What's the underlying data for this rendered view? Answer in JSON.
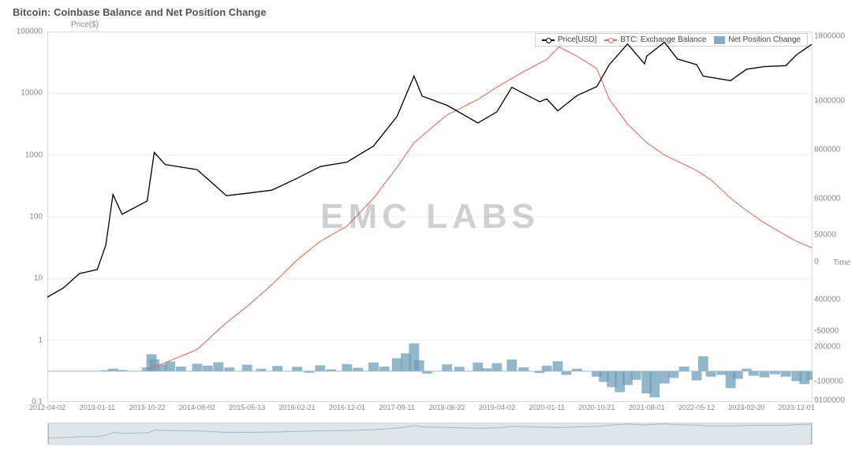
{
  "title": "Bitcoin: Coinbase Balance and Net Position Change",
  "y_left": {
    "label": "Price($)",
    "scale": "log",
    "min": 0.1,
    "max": 100000,
    "ticks": [
      0.1,
      1,
      10,
      100,
      1000,
      10000,
      100000
    ]
  },
  "y_right": {
    "label": "Time",
    "scale": "linear",
    "min": -100000,
    "max": 1800000,
    "ticks": [
      -100000,
      -50000,
      0,
      50000,
      200000,
      400000,
      600000,
      800000,
      1000000,
      1800000,
      9100000
    ]
  },
  "x_axis": {
    "min": "2012-04-02",
    "max": "2024-03-01",
    "ticks": [
      "2012-04-02",
      "2013-01-11",
      "2013-10-22",
      "2014-08-02",
      "2015-05-13",
      "2016-02-21",
      "2016-12-01",
      "2017-09-11",
      "2018-06-22",
      "2019-04-02",
      "2020-01-11",
      "2020-10-21",
      "2021-08-01",
      "2022-05-12",
      "2023-02-20",
      "2023-12-01"
    ]
  },
  "legend": {
    "price": "Price[USD]",
    "balance": "BTC: Exchange Balance",
    "netpos": "Net Position Change"
  },
  "watermark": "EMC LABS",
  "colors": {
    "price": "#000000",
    "balance": "#e26b5e",
    "netpos_fill": "#6f9fb8",
    "netpos_opacity": 0.75,
    "grid": "#eeeeee",
    "axis": "#bbbbbb",
    "bg": "#ffffff",
    "text": "#888888",
    "title": "#555555"
  },
  "style": {
    "title_fontsize": 13,
    "tick_fontsize": 10,
    "xtick_fontsize": 9,
    "price_linewidth": 1.3,
    "balance_linewidth": 1.1,
    "watermark_fontsize": 44
  },
  "series": {
    "price_usd": [
      [
        "2012-04-02",
        5
      ],
      [
        "2012-07-01",
        7
      ],
      [
        "2012-10-01",
        12
      ],
      [
        "2013-01-11",
        14
      ],
      [
        "2013-03-01",
        35
      ],
      [
        "2013-04-10",
        230
      ],
      [
        "2013-06-01",
        110
      ],
      [
        "2013-10-22",
        180
      ],
      [
        "2013-12-01",
        1100
      ],
      [
        "2014-02-01",
        700
      ],
      [
        "2014-08-02",
        580
      ],
      [
        "2015-01-15",
        220
      ],
      [
        "2015-05-13",
        240
      ],
      [
        "2015-10-01",
        270
      ],
      [
        "2016-02-21",
        420
      ],
      [
        "2016-07-01",
        650
      ],
      [
        "2016-12-01",
        770
      ],
      [
        "2017-05-01",
        1400
      ],
      [
        "2017-09-11",
        4200
      ],
      [
        "2017-12-17",
        19000
      ],
      [
        "2018-02-01",
        9000
      ],
      [
        "2018-06-22",
        6400
      ],
      [
        "2018-12-15",
        3300
      ],
      [
        "2019-04-02",
        5000
      ],
      [
        "2019-06-26",
        12500
      ],
      [
        "2019-12-01",
        7300
      ],
      [
        "2020-01-11",
        8100
      ],
      [
        "2020-03-13",
        5200
      ],
      [
        "2020-07-01",
        9200
      ],
      [
        "2020-10-21",
        12800
      ],
      [
        "2020-12-31",
        29000
      ],
      [
        "2021-04-14",
        63000
      ],
      [
        "2021-07-20",
        30000
      ],
      [
        "2021-08-01",
        40000
      ],
      [
        "2021-11-10",
        67000
      ],
      [
        "2022-01-22",
        36000
      ],
      [
        "2022-05-12",
        29000
      ],
      [
        "2022-06-18",
        19000
      ],
      [
        "2022-11-21",
        16000
      ],
      [
        "2023-02-20",
        24500
      ],
      [
        "2023-06-01",
        27000
      ],
      [
        "2023-10-01",
        28000
      ],
      [
        "2023-12-01",
        42000
      ],
      [
        "2024-02-25",
        62000
      ]
    ],
    "exchange_balance": [
      [
        "2013-10-22",
        8000
      ],
      [
        "2014-01-01",
        20000
      ],
      [
        "2014-08-02",
        70000
      ],
      [
        "2015-01-01",
        150000
      ],
      [
        "2015-05-13",
        210000
      ],
      [
        "2015-10-01",
        280000
      ],
      [
        "2016-02-21",
        360000
      ],
      [
        "2016-07-01",
        420000
      ],
      [
        "2016-12-01",
        470000
      ],
      [
        "2017-05-01",
        560000
      ],
      [
        "2017-09-11",
        660000
      ],
      [
        "2017-12-17",
        740000
      ],
      [
        "2018-06-22",
        830000
      ],
      [
        "2018-12-15",
        880000
      ],
      [
        "2019-04-02",
        920000
      ],
      [
        "2019-09-01",
        970000
      ],
      [
        "2020-01-11",
        1010000
      ],
      [
        "2020-03-20",
        1050000
      ],
      [
        "2020-07-01",
        1020000
      ],
      [
        "2020-10-21",
        980000
      ],
      [
        "2021-01-01",
        880000
      ],
      [
        "2021-04-14",
        800000
      ],
      [
        "2021-08-01",
        740000
      ],
      [
        "2021-11-10",
        700000
      ],
      [
        "2022-05-12",
        650000
      ],
      [
        "2022-08-01",
        620000
      ],
      [
        "2022-11-21",
        560000
      ],
      [
        "2023-02-20",
        520000
      ],
      [
        "2023-06-01",
        480000
      ],
      [
        "2023-10-01",
        440000
      ],
      [
        "2023-12-01",
        420000
      ],
      [
        "2024-02-25",
        400000
      ]
    ],
    "net_position_change": [
      [
        "2012-04-02",
        0
      ],
      [
        "2013-01-11",
        500
      ],
      [
        "2013-03-01",
        3000
      ],
      [
        "2013-04-10",
        8000
      ],
      [
        "2013-06-01",
        4000
      ],
      [
        "2013-10-22",
        12000
      ],
      [
        "2013-11-15",
        55000
      ],
      [
        "2013-12-01",
        38000
      ],
      [
        "2014-01-15",
        22000
      ],
      [
        "2014-03-01",
        31000
      ],
      [
        "2014-05-01",
        15000
      ],
      [
        "2014-08-02",
        24000
      ],
      [
        "2014-10-01",
        18000
      ],
      [
        "2014-12-01",
        29000
      ],
      [
        "2015-02-01",
        12000
      ],
      [
        "2015-05-13",
        21000
      ],
      [
        "2015-08-01",
        8000
      ],
      [
        "2015-11-01",
        17000
      ],
      [
        "2016-02-21",
        14000
      ],
      [
        "2016-05-01",
        -5000
      ],
      [
        "2016-07-01",
        19000
      ],
      [
        "2016-09-01",
        6000
      ],
      [
        "2016-12-01",
        23000
      ],
      [
        "2017-02-01",
        11000
      ],
      [
        "2017-05-01",
        28000
      ],
      [
        "2017-07-01",
        15000
      ],
      [
        "2017-09-11",
        42000
      ],
      [
        "2017-11-01",
        58000
      ],
      [
        "2017-12-17",
        90000
      ],
      [
        "2018-01-15",
        35000
      ],
      [
        "2018-03-01",
        -8000
      ],
      [
        "2018-06-22",
        22000
      ],
      [
        "2018-09-01",
        14000
      ],
      [
        "2018-12-15",
        28000
      ],
      [
        "2019-02-01",
        9000
      ],
      [
        "2019-04-02",
        26000
      ],
      [
        "2019-06-26",
        38000
      ],
      [
        "2019-09-01",
        12000
      ],
      [
        "2019-12-01",
        -6000
      ],
      [
        "2020-01-11",
        18000
      ],
      [
        "2020-03-13",
        32000
      ],
      [
        "2020-05-01",
        -12000
      ],
      [
        "2020-07-01",
        8000
      ],
      [
        "2020-10-21",
        -18000
      ],
      [
        "2020-12-01",
        -35000
      ],
      [
        "2021-01-15",
        -52000
      ],
      [
        "2021-03-01",
        -68000
      ],
      [
        "2021-04-14",
        -45000
      ],
      [
        "2021-06-01",
        -28000
      ],
      [
        "2021-08-01",
        -72000
      ],
      [
        "2021-09-15",
        -85000
      ],
      [
        "2021-11-10",
        -40000
      ],
      [
        "2022-01-01",
        -22000
      ],
      [
        "2022-03-01",
        15000
      ],
      [
        "2022-05-12",
        -30000
      ],
      [
        "2022-06-18",
        48000
      ],
      [
        "2022-08-01",
        -18000
      ],
      [
        "2022-10-01",
        -12000
      ],
      [
        "2022-11-21",
        -55000
      ],
      [
        "2023-01-01",
        -25000
      ],
      [
        "2023-02-20",
        8000
      ],
      [
        "2023-04-01",
        -15000
      ],
      [
        "2023-06-01",
        -20000
      ],
      [
        "2023-08-01",
        -10000
      ],
      [
        "2023-10-01",
        -18000
      ],
      [
        "2023-12-01",
        -32000
      ],
      [
        "2024-01-15",
        -42000
      ],
      [
        "2024-02-25",
        -28000
      ]
    ]
  },
  "brush": {
    "mini_series": "price_usd"
  }
}
